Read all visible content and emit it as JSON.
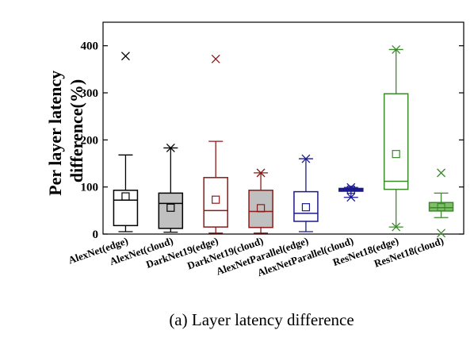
{
  "chart_data": {
    "type": "box",
    "ylabel_lines": [
      "Per layer latency",
      "difference(%)"
    ],
    "ylim": [
      0,
      450
    ],
    "yticks": [
      0,
      100,
      200,
      300,
      400
    ],
    "grid": false,
    "categories": [
      "AlexNet(edge)",
      "AlexNet(cloud)",
      "DarkNet19(edge)",
      "DarkNet19(cloud)",
      "AlexNetParallel(edge)",
      "AlexNetParallel(cloud)",
      "ResNet18(edge)",
      "ResNet18(cloud)"
    ],
    "boxes": [
      {
        "q1": 18,
        "median": 72,
        "q3": 93,
        "whisker_low": 5,
        "whisker_high": 168,
        "mean": 80,
        "outliers": [
          378
        ],
        "color": "#000000",
        "fill": "none"
      },
      {
        "q1": 12,
        "median": 65,
        "q3": 87,
        "whisker_low": 4,
        "whisker_high": 183,
        "mean": 56,
        "outliers": [
          183
        ],
        "color": "#000000",
        "fill": "#c0c0c0"
      },
      {
        "q1": 15,
        "median": 50,
        "q3": 120,
        "whisker_low": 2,
        "whisker_high": 197,
        "mean": 73,
        "outliers": [
          372
        ],
        "color": "#8b1a1a",
        "fill": "none"
      },
      {
        "q1": 14,
        "median": 48,
        "q3": 93,
        "whisker_low": 2,
        "whisker_high": 130,
        "mean": 55,
        "outliers": [
          130
        ],
        "color": "#8b1a1a",
        "fill": "#c0c0c0"
      },
      {
        "q1": 27,
        "median": 44,
        "q3": 90,
        "whisker_low": 5,
        "whisker_high": 160,
        "mean": 57,
        "outliers": [
          160
        ],
        "color": "#1a1a8b",
        "fill": "none"
      },
      {
        "q1": 91,
        "median": 94,
        "q3": 97,
        "whisker_low": 78,
        "whisker_high": 99,
        "mean": 94,
        "outliers": [
          78,
          99
        ],
        "color": "#1a1a8b",
        "fill": "#1a1a8b"
      },
      {
        "q1": 95,
        "median": 112,
        "q3": 298,
        "whisker_low": 15,
        "whisker_high": 392,
        "mean": 170,
        "outliers": [
          15,
          392
        ],
        "color": "#3a8a2a",
        "fill": "none"
      },
      {
        "q1": 49,
        "median": 56,
        "q3": 67,
        "whisker_low": 35,
        "whisker_high": 87,
        "mean": 57,
        "outliers": [
          2,
          130
        ],
        "color": "#3a8a2a",
        "fill": "#7fbf6a"
      }
    ]
  },
  "caption": "(a)  Layer latency difference"
}
